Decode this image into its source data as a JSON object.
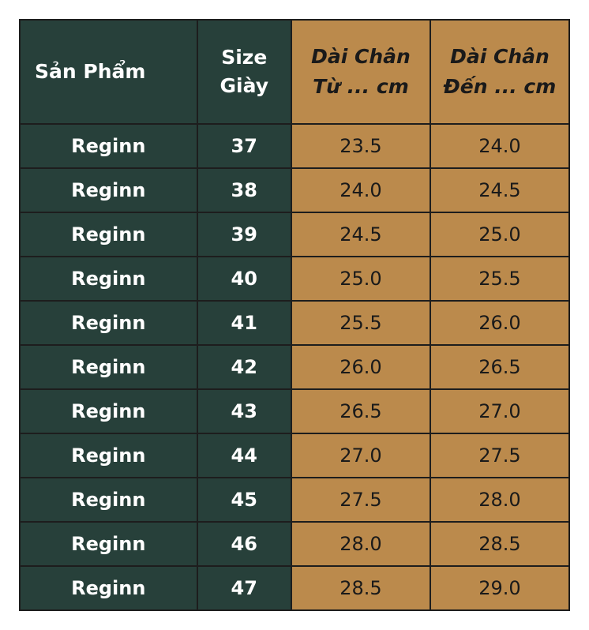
{
  "table": {
    "headers": {
      "product": "Sản Phẩm",
      "size_line1": "Size",
      "size_line2": "Giày",
      "from_line1": "Dài Chân",
      "from_line2": "Từ ... cm",
      "to_line1": "Dài Chân",
      "to_line2": "Đến ... cm"
    },
    "rows": [
      {
        "product": "Reginn",
        "size": "37",
        "from": "23.5",
        "to": "24.0"
      },
      {
        "product": "Reginn",
        "size": "38",
        "from": "24.0",
        "to": "24.5"
      },
      {
        "product": "Reginn",
        "size": "39",
        "from": "24.5",
        "to": "25.0"
      },
      {
        "product": "Reginn",
        "size": "40",
        "from": "25.0",
        "to": "25.5"
      },
      {
        "product": "Reginn",
        "size": "41",
        "from": "25.5",
        "to": "26.0"
      },
      {
        "product": "Reginn",
        "size": "42",
        "from": "26.0",
        "to": "26.5"
      },
      {
        "product": "Reginn",
        "size": "43",
        "from": "26.5",
        "to": "27.0"
      },
      {
        "product": "Reginn",
        "size": "44",
        "from": "27.0",
        "to": "27.5"
      },
      {
        "product": "Reginn",
        "size": "45",
        "from": "27.5",
        "to": "28.0"
      },
      {
        "product": "Reginn",
        "size": "46",
        "from": "28.0",
        "to": "28.5"
      },
      {
        "product": "Reginn",
        "size": "47",
        "from": "28.5",
        "to": "29.0"
      }
    ]
  },
  "colors": {
    "dark_green": "#27403a",
    "tan": "#bb8a4c",
    "border": "#1d1d1d"
  }
}
